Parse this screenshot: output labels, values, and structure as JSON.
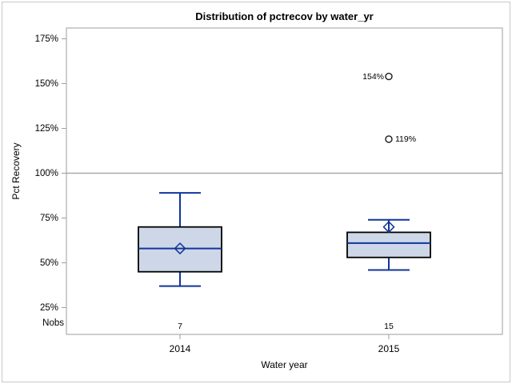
{
  "chart_data": {
    "type": "boxplot",
    "title": "Distribution of pctrecov by water_yr",
    "xlabel": "Water year",
    "ylabel": "Pct Recovery",
    "y_ticks": [
      175,
      150,
      125,
      100,
      75,
      50,
      25
    ],
    "y_tick_suffix": "%",
    "ylim": [
      25,
      175
    ],
    "reference_line": 100,
    "grid": "off",
    "legend": "none",
    "nobs_row_label": "Nobs",
    "categories": [
      "2014",
      "2015"
    ],
    "series": [
      {
        "category": "2014",
        "nobs": "7",
        "whisker_low": 37,
        "q1": 45,
        "median": 58,
        "q3": 70,
        "whisker_high": 89,
        "mean": 58,
        "outliers": []
      },
      {
        "category": "2015",
        "nobs": "15",
        "whisker_low": 46,
        "q1": 53,
        "median": 61,
        "q3": 67,
        "whisker_high": 74,
        "mean": 70,
        "outliers": [
          {
            "value": 154,
            "label": "154%",
            "label_side": "left"
          },
          {
            "value": 119,
            "label": "119%",
            "label_side": "right"
          }
        ]
      }
    ]
  },
  "colors": {
    "box_fill": "#cdd7e8",
    "box_stroke": "#000000",
    "line": "#11359b",
    "reference_line": "#a9a9a9",
    "axis": "#9e9e9e",
    "outlier_stroke": "#1a1a1a",
    "frame": "#c9c9c9",
    "text": "#000000"
  }
}
